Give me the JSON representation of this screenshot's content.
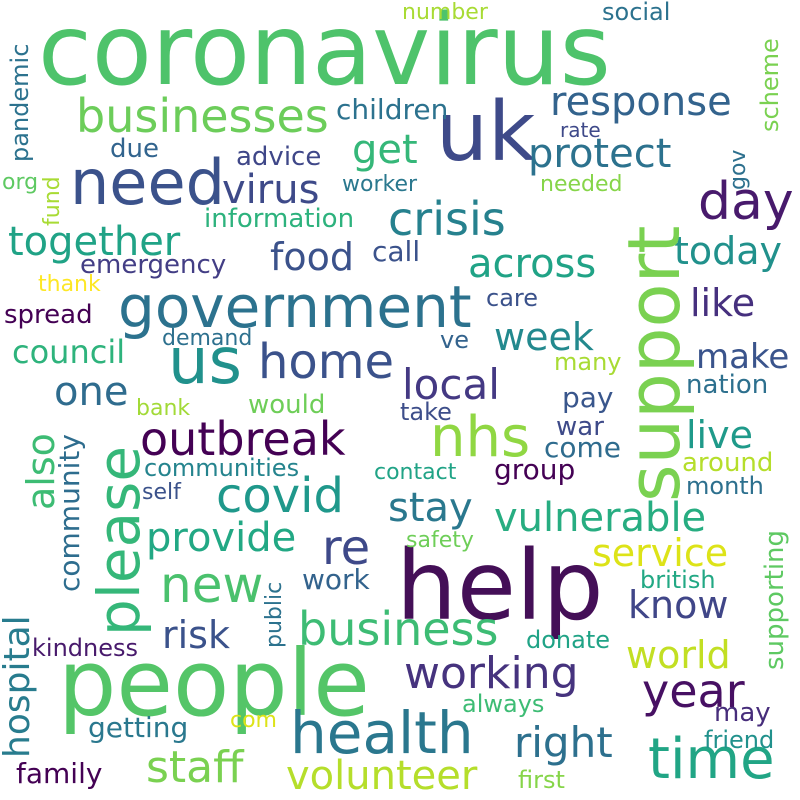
{
  "words": {
    "coronavirus": {
      "text": "coronavirus",
      "color": "#4ec36b"
    },
    "help": {
      "text": "help",
      "color": "#440f57"
    },
    "people": {
      "text": "people",
      "color": "#54c568"
    },
    "uk": {
      "text": "uk",
      "color": "#3e4a89"
    },
    "support": {
      "text": "support",
      "color": "#7ad151"
    },
    "government": {
      "text": "government",
      "color": "#2c728e"
    },
    "need": {
      "text": "need",
      "color": "#3b528b"
    },
    "businesses": {
      "text": "businesses",
      "color": "#6ccd5a"
    },
    "us": {
      "text": "us",
      "color": "#21918c"
    },
    "health": {
      "text": "health",
      "color": "#2a778e"
    },
    "nhs": {
      "text": "nhs",
      "color": "#90d743"
    },
    "time": {
      "text": "time",
      "color": "#21a585"
    },
    "outbreak": {
      "text": "outbreak",
      "color": "#440154"
    },
    "home": {
      "text": "home",
      "color": "#3b528b"
    },
    "covid": {
      "text": "covid",
      "color": "#1f988b"
    },
    "please": {
      "text": "please",
      "color": "#35b779"
    },
    "year": {
      "text": "year",
      "color": "#471063"
    },
    "new": {
      "text": "new",
      "color": "#4ac16d"
    },
    "re": {
      "text": "re",
      "color": "#3e4989"
    },
    "day": {
      "text": "day",
      "color": "#481a6c"
    },
    "crisis": {
      "text": "crisis",
      "color": "#26818e"
    },
    "business": {
      "text": "business",
      "color": "#3dbc74"
    },
    "staff": {
      "text": "staff",
      "color": "#7ad151"
    },
    "volunteer": {
      "text": "volunteer",
      "color": "#b5de2b"
    },
    "working": {
      "text": "working",
      "color": "#46337e"
    },
    "right": {
      "text": "right",
      "color": "#2d708e"
    },
    "response": {
      "text": "response",
      "color": "#33638d"
    },
    "protect": {
      "text": "protect",
      "color": "#2c728e"
    },
    "virus": {
      "text": "virus",
      "color": "#3e4a89"
    },
    "together": {
      "text": "together",
      "color": "#20a386"
    },
    "local": {
      "text": "local",
      "color": "#443983"
    },
    "across": {
      "text": "across",
      "color": "#20a386"
    },
    "vulnerable": {
      "text": "vulnerable",
      "color": "#27ad81"
    },
    "food": {
      "text": "food",
      "color": "#3b528b"
    },
    "world": {
      "text": "world",
      "color": "#c2df23"
    },
    "service": {
      "text": "service",
      "color": "#dde318"
    },
    "hospital": {
      "text": "hospital",
      "color": "#287c8e"
    },
    "provide": {
      "text": "provide",
      "color": "#22a884"
    },
    "stay": {
      "text": "stay",
      "color": "#2a788e"
    },
    "get": {
      "text": "get",
      "color": "#35b779"
    },
    "week": {
      "text": "week",
      "color": "#23898e"
    },
    "risk": {
      "text": "risk",
      "color": "#3b528b"
    },
    "know": {
      "text": "know",
      "color": "#404688"
    },
    "one": {
      "text": "one",
      "color": "#2f6c8e"
    },
    "council": {
      "text": "council",
      "color": "#2eb37c"
    },
    "live": {
      "text": "live",
      "color": "#1f9a8a"
    },
    "like": {
      "text": "like",
      "color": "#46307e"
    },
    "today": {
      "text": "today",
      "color": "#21918c"
    },
    "make": {
      "text": "make",
      "color": "#3a548c"
    },
    "also": {
      "text": "also",
      "color": "#3dbc74"
    },
    "community": {
      "text": "community",
      "color": "#2e6d8e"
    },
    "emergency": {
      "text": "emergency",
      "color": "#433e85"
    },
    "children": {
      "text": "children",
      "color": "#2c728e"
    },
    "information": {
      "text": "information",
      "color": "#2db27d"
    },
    "advice": {
      "text": "advice",
      "color": "#3f4788"
    },
    "due": {
      "text": "due",
      "color": "#32648e"
    },
    "call": {
      "text": "call",
      "color": "#3b528b"
    },
    "care": {
      "text": "care",
      "color": "#3b528b"
    },
    "spread": {
      "text": "spread",
      "color": "#440154"
    },
    "demand": {
      "text": "demand",
      "color": "#2d708e"
    },
    "ve": {
      "text": "ve",
      "color": "#33638d"
    },
    "many": {
      "text": "many",
      "color": "#a8db34"
    },
    "nation": {
      "text": "nation",
      "color": "#2d708e"
    },
    "pay": {
      "text": "pay",
      "color": "#39568c"
    },
    "would": {
      "text": "would",
      "color": "#6ece58"
    },
    "take": {
      "text": "take",
      "color": "#3d4e8a"
    },
    "bank": {
      "text": "bank",
      "color": "#a2da37"
    },
    "war": {
      "text": "war",
      "color": "#3e4a89"
    },
    "come": {
      "text": "come",
      "color": "#2f6c8e"
    },
    "around": {
      "text": "around",
      "color": "#b5de2b"
    },
    "communities": {
      "text": "communities",
      "color": "#25848e"
    },
    "contact": {
      "text": "contact",
      "color": "#20a386"
    },
    "group": {
      "text": "group",
      "color": "#440154"
    },
    "month": {
      "text": "month",
      "color": "#2d708e"
    },
    "self": {
      "text": "self",
      "color": "#3b528b"
    },
    "safety": {
      "text": "safety",
      "color": "#6ece58"
    },
    "public": {
      "text": "public",
      "color": "#2c728e"
    },
    "work": {
      "text": "work",
      "color": "#33638d"
    },
    "british": {
      "text": "british",
      "color": "#22a884"
    },
    "supporting": {
      "text": "supporting",
      "color": "#5ec962"
    },
    "kindness": {
      "text": "kindness",
      "color": "#481a6c"
    },
    "donate": {
      "text": "donate",
      "color": "#20a386"
    },
    "getting": {
      "text": "getting",
      "color": "#2a788e"
    },
    "com": {
      "text": "com",
      "color": "#dde318"
    },
    "always": {
      "text": "always",
      "color": "#3dbc74"
    },
    "may": {
      "text": "may",
      "color": "#472d7b"
    },
    "friend": {
      "text": "friend",
      "color": "#21918c"
    },
    "family": {
      "text": "family",
      "color": "#440154"
    },
    "first": {
      "text": "first",
      "color": "#86d549"
    },
    "thank": {
      "text": "thank",
      "color": "#fde725"
    },
    "org": {
      "text": "org",
      "color": "#5ec962"
    },
    "fund": {
      "text": "fund",
      "color": "#a8db34"
    },
    "pandemic": {
      "text": "pandemic",
      "color": "#2c728e"
    },
    "number": {
      "text": "number",
      "color": "#a8db34"
    },
    "social": {
      "text": "social",
      "color": "#2c728e"
    },
    "scheme": {
      "text": "scheme",
      "color": "#7ad151"
    },
    "rate": {
      "text": "rate",
      "color": "#3e4989"
    },
    "gov": {
      "text": "gov",
      "color": "#2d708e"
    },
    "worker": {
      "text": "worker",
      "color": "#2a788e"
    },
    "needed": {
      "text": "needed",
      "color": "#86d549"
    }
  }
}
